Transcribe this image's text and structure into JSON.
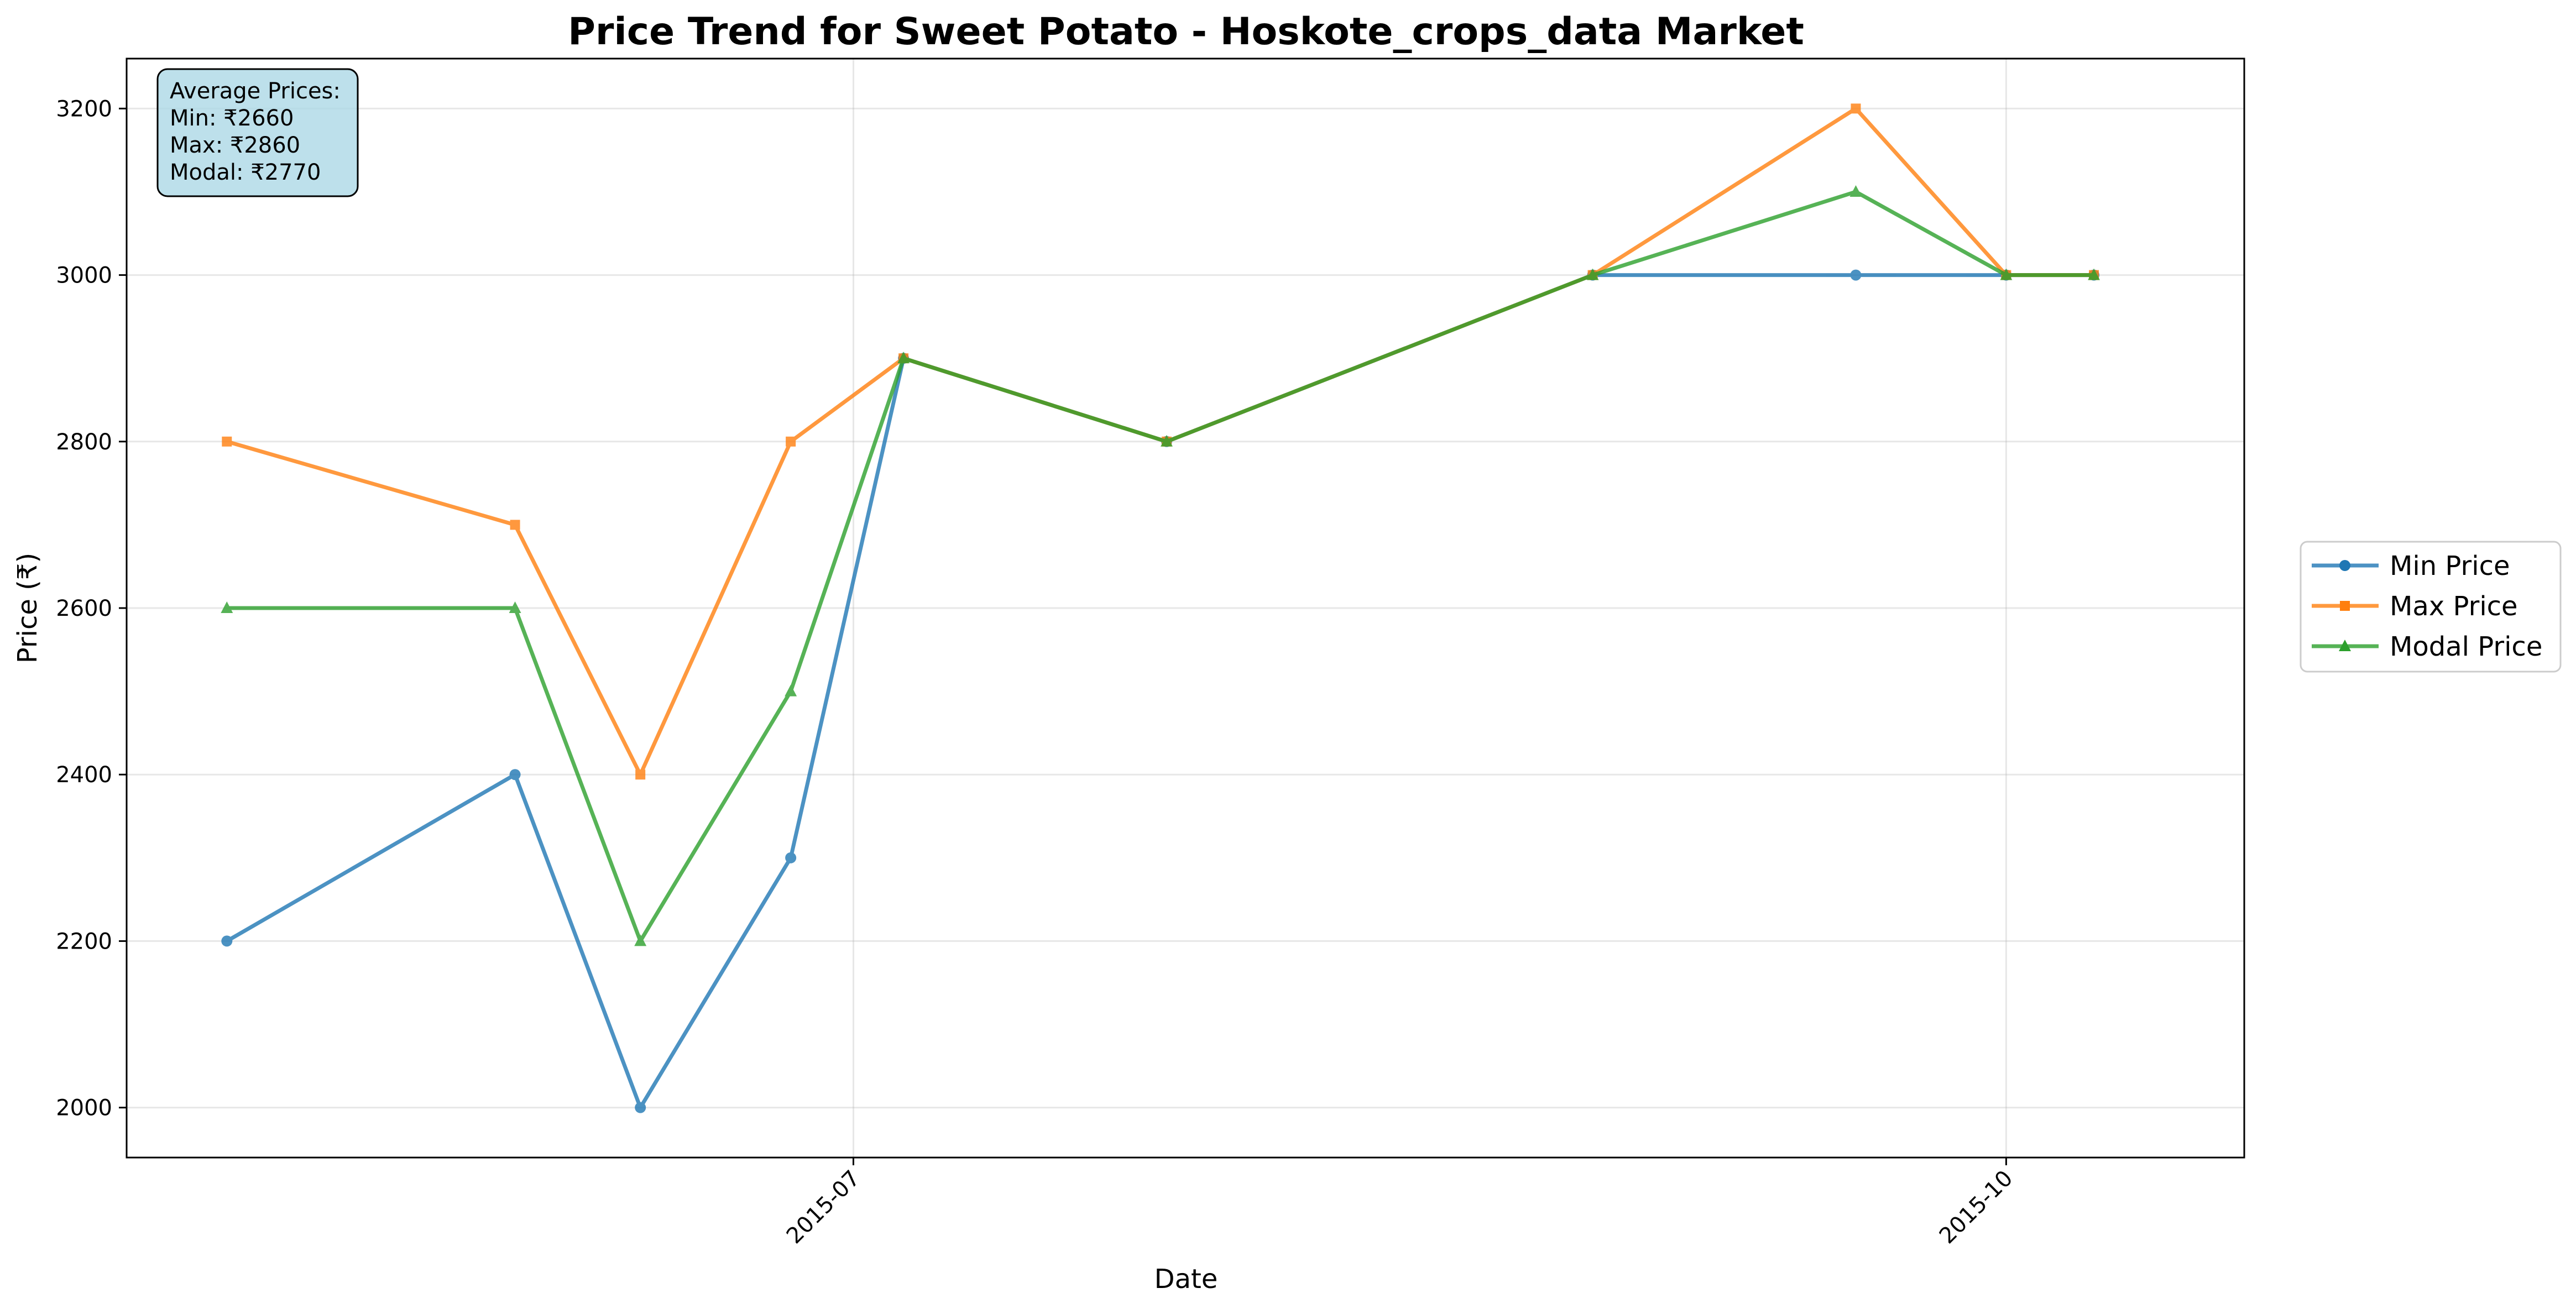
{
  "chart_data": {
    "type": "line",
    "title": "Price Trend for Sweet Potato - Hoskote_crops_data Market",
    "xlabel": "Date",
    "ylabel": "Price (₹)",
    "x_dates": [
      "2015-05-12",
      "2015-06-04",
      "2015-06-14",
      "2015-06-26",
      "2015-07-05",
      "2015-07-26",
      "2015-08-29",
      "2015-09-19",
      "2015-10-01",
      "2015-10-08"
    ],
    "x_ticks": [
      {
        "label": "2015-07",
        "date": "2015-07-01"
      },
      {
        "label": "2015-10",
        "date": "2015-10-01"
      }
    ],
    "xlim": [
      "2015-05-04",
      "2015-10-20"
    ],
    "ylim": [
      1940,
      3260
    ],
    "y_ticks": [
      2000,
      2200,
      2400,
      2600,
      2800,
      3000,
      3200
    ],
    "grid": true,
    "series": [
      {
        "name": "Min Price",
        "color": "#1f77b4",
        "marker": "circle",
        "values": [
          2200,
          2400,
          2000,
          2300,
          2900,
          2800,
          3000,
          3000,
          3000,
          3000
        ]
      },
      {
        "name": "Max Price",
        "color": "#ff7f0e",
        "marker": "square",
        "values": [
          2800,
          2700,
          2400,
          2800,
          2900,
          2800,
          3000,
          3200,
          3000,
          3000
        ]
      },
      {
        "name": "Modal Price",
        "color": "#2ca02c",
        "marker": "triangle",
        "values": [
          2600,
          2600,
          2200,
          2500,
          2900,
          2800,
          3000,
          3100,
          3000,
          3000
        ]
      }
    ],
    "legend_position": "right",
    "annotation": {
      "lines": [
        "Average Prices:",
        "Min: ₹2660",
        "Max: ₹2860",
        "Modal: ₹2770"
      ],
      "background": "#add8e6"
    }
  }
}
